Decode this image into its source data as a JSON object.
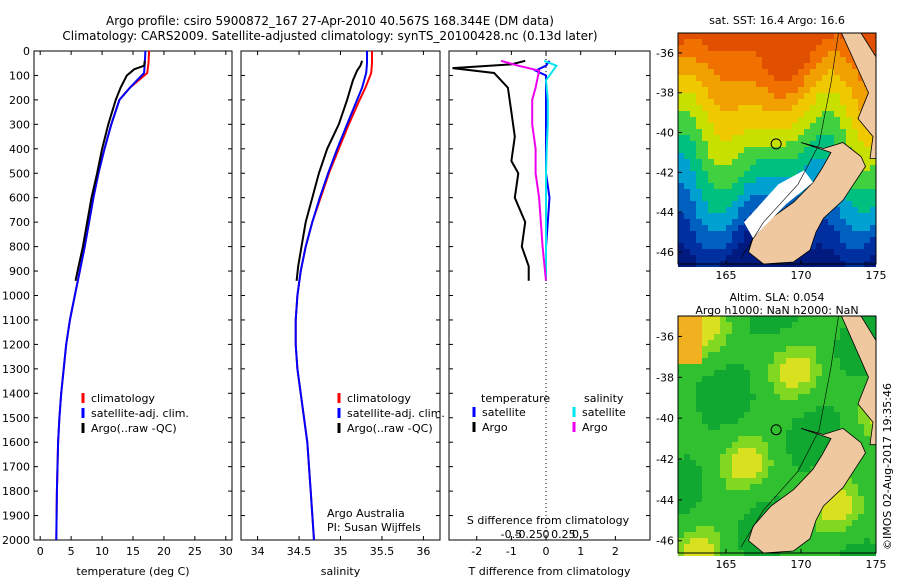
{
  "header": {
    "title_line1": "Argo profile: csiro 5900872_167 27-Apr-2010 40.567S 168.344E (DM data)",
    "title_line2": "Climatology: CARS2009. Satellite-adjusted climatology: synTS_20100428.nc (0.13d later)"
  },
  "colors": {
    "climatology": "#ff0000",
    "satellite": "#0000ff",
    "argo": "#000000",
    "sal_satellite": "#00e5ee",
    "sal_argo": "#ee00ee",
    "land": "#f0c8a0",
    "footer": "#000000"
  },
  "chart_data": [
    {
      "id": "temperature",
      "type": "line",
      "xlabel": "temperature (deg C)",
      "ylabel": "",
      "xlim": [
        -1,
        31
      ],
      "ylim": [
        2000,
        0
      ],
      "xticks": [
        0,
        5,
        10,
        15,
        20,
        25,
        30
      ],
      "yticks": [
        0,
        100,
        200,
        300,
        400,
        500,
        600,
        700,
        800,
        900,
        1000,
        1100,
        1200,
        1300,
        1400,
        1500,
        1600,
        1700,
        1800,
        1900,
        2000
      ],
      "legend": [
        "climatology",
        "satellite-adj. clim.",
        "Argo(..raw -QC)"
      ],
      "legend_position": "lower-center",
      "series": [
        {
          "name": "climatology",
          "color": "#ff0000",
          "x": [
            17.6,
            17.5,
            17.3,
            14.5,
            12.8,
            11.5,
            10.4,
            9.4,
            8.6,
            7.9,
            7.2,
            6.4,
            5.6,
            4.8,
            4.2,
            3.8,
            3.4,
            3.1,
            2.9,
            2.7,
            2.6
          ],
          "y": [
            0,
            50,
            90,
            150,
            200,
            300,
            400,
            500,
            600,
            700,
            800,
            900,
            1000,
            1100,
            1200,
            1300,
            1400,
            1500,
            1600,
            1800,
            2000
          ]
        },
        {
          "name": "satellite-adj. clim.",
          "color": "#0000ff",
          "x": [
            17.0,
            16.9,
            16.8,
            14.5,
            12.8,
            11.5,
            10.4,
            9.4,
            8.6,
            7.9,
            7.2,
            6.4,
            5.6,
            4.8,
            4.2,
            3.8,
            3.4,
            3.1,
            2.9,
            2.7,
            2.6
          ],
          "y": [
            0,
            50,
            90,
            150,
            200,
            300,
            400,
            500,
            600,
            700,
            800,
            900,
            1000,
            1100,
            1200,
            1300,
            1400,
            1500,
            1600,
            1800,
            2000
          ]
        },
        {
          "name": "Argo(..raw -QC)",
          "color": "#000000",
          "x": [
            16.9,
            16.8,
            15.2,
            14.0,
            13.0,
            12.2,
            11.0,
            10.0,
            9.2,
            8.3,
            7.6,
            6.9,
            6.2,
            5.7
          ],
          "y": [
            40,
            60,
            75,
            100,
            150,
            200,
            300,
            400,
            500,
            600,
            700,
            800,
            880,
            940
          ]
        }
      ]
    },
    {
      "id": "salinity",
      "type": "line",
      "xlabel": "salinity",
      "ylabel": "",
      "xlim": [
        33.8,
        36.2
      ],
      "ylim": [
        2000,
        0
      ],
      "xticks": [
        34,
        34.5,
        35,
        35.5,
        36
      ],
      "legend": [
        "climatology",
        "satellite-adj. clim.",
        "Argo(..raw -QC)"
      ],
      "legend_position": "lower-center",
      "annotation": [
        "Argo Australia",
        "PI: Susan Wijffels"
      ],
      "series": [
        {
          "name": "climatology",
          "color": "#ff0000",
          "x": [
            35.38,
            35.38,
            35.37,
            35.3,
            35.23,
            35.1,
            34.98,
            34.86,
            34.76,
            34.66,
            34.58,
            34.52,
            34.48,
            34.46,
            34.46,
            34.48,
            34.52,
            34.56,
            34.6,
            34.64,
            34.68
          ],
          "y": [
            0,
            50,
            90,
            150,
            200,
            300,
            400,
            500,
            600,
            700,
            800,
            900,
            1000,
            1100,
            1200,
            1300,
            1400,
            1500,
            1600,
            1800,
            2000
          ]
        },
        {
          "name": "satellite-adj. clim.",
          "color": "#0000ff",
          "x": [
            35.32,
            35.32,
            35.31,
            35.26,
            35.2,
            35.08,
            34.96,
            34.85,
            34.75,
            34.66,
            34.58,
            34.52,
            34.48,
            34.46,
            34.46,
            34.48,
            34.52,
            34.56,
            34.6,
            34.64,
            34.68
          ],
          "y": [
            0,
            50,
            90,
            150,
            200,
            300,
            400,
            500,
            600,
            700,
            800,
            900,
            1000,
            1100,
            1200,
            1300,
            1400,
            1500,
            1600,
            1800,
            2000
          ]
        },
        {
          "name": "Argo(..raw -QC)",
          "color": "#000000",
          "x": [
            35.26,
            35.24,
            35.2,
            35.15,
            35.08,
            34.98,
            34.84,
            34.74,
            34.66,
            34.58,
            34.53,
            34.49,
            34.47
          ],
          "y": [
            40,
            60,
            80,
            120,
            200,
            300,
            400,
            500,
            600,
            700,
            800,
            880,
            940
          ]
        }
      ]
    },
    {
      "id": "difference",
      "type": "line",
      "xlabel": "T difference from climatology",
      "xlabel_top": "S difference from climatology",
      "xlim": [
        -2.8,
        3.0
      ],
      "ylim": [
        2000,
        0
      ],
      "xticks": [
        -2,
        -1,
        0,
        1,
        2
      ],
      "xtick_labels": [
        "-2",
        "-1",
        "0",
        "1",
        "2"
      ],
      "s_ticks": [
        -0.5,
        -0.25,
        0,
        0.25,
        0.5
      ],
      "s_tick_labels": [
        "-0.5",
        "-0.25",
        "0",
        "0.25",
        "0.5"
      ],
      "legend": {
        "temperature_header": "temperature",
        "salinity_header": "salinity",
        "temperature_items": [
          "satellite",
          "Argo"
        ],
        "salinity_items": [
          "satellite",
          "Argo"
        ]
      },
      "series": [
        {
          "name": "temperature satellite",
          "color": "#0000ff",
          "x": [
            0.1,
            0.0,
            -0.3,
            0.0,
            0.0,
            0.0,
            0.0,
            0.0,
            0.1,
            0.05,
            0.0,
            0.0
          ],
          "y": [
            40,
            60,
            80,
            100,
            200,
            300,
            400,
            500,
            600,
            700,
            800,
            940
          ]
        },
        {
          "name": "temperature Argo",
          "color": "#000000",
          "x": [
            -0.6,
            -1.0,
            -2.7,
            -1.5,
            -1.1,
            -1.0,
            -0.9,
            -1.0,
            -0.8,
            -0.9,
            -0.6,
            -0.7,
            -0.5,
            -0.5
          ],
          "y": [
            40,
            55,
            70,
            90,
            150,
            250,
            350,
            450,
            500,
            600,
            700,
            800,
            880,
            940
          ]
        },
        {
          "name": "salinity satellite",
          "color": "#00e5ee",
          "x": [
            -0.05,
            0.3,
            0.2,
            0.0,
            0.05,
            0.05,
            0.02,
            0.0,
            0.0,
            0.0,
            0.0
          ],
          "y": [
            40,
            60,
            80,
            120,
            200,
            300,
            400,
            500,
            600,
            800,
            940
          ]
        },
        {
          "name": "salinity Argo",
          "color": "#ee00ee",
          "x": [
            -1.3,
            -0.8,
            -0.2,
            -0.3,
            -0.4,
            -0.4,
            -0.3,
            -0.3,
            -0.2,
            -0.1,
            0.0
          ],
          "y": [
            40,
            60,
            80,
            150,
            200,
            300,
            400,
            500,
            600,
            800,
            940
          ]
        }
      ]
    },
    {
      "id": "sst-map",
      "type": "heatmap",
      "title": "sat. SST: 16.4  Argo: 16.6",
      "xlim": [
        161.8,
        175
      ],
      "ylim": [
        -46.6,
        -35
      ],
      "xticks": [
        165,
        170,
        175
      ],
      "yticks": [
        -36,
        -38,
        -40,
        -42,
        -44,
        -46
      ],
      "marker": {
        "lon": 168.344,
        "lat": -40.567
      }
    },
    {
      "id": "sla-map",
      "type": "heatmap",
      "title_line1": "Altim. SLA: 0.054",
      "title_line2": "Argo h1000: NaN h2000: NaN",
      "xlim": [
        161.8,
        175
      ],
      "ylim": [
        -46.6,
        -35
      ],
      "xticks": [
        165,
        170,
        175
      ],
      "yticks": [
        -36,
        -38,
        -40,
        -42,
        -44,
        -46
      ],
      "marker": {
        "lon": 168.344,
        "lat": -40.567
      }
    }
  ],
  "footer": {
    "credit": "©IMOS 02-Aug-2017 19:35:46"
  }
}
